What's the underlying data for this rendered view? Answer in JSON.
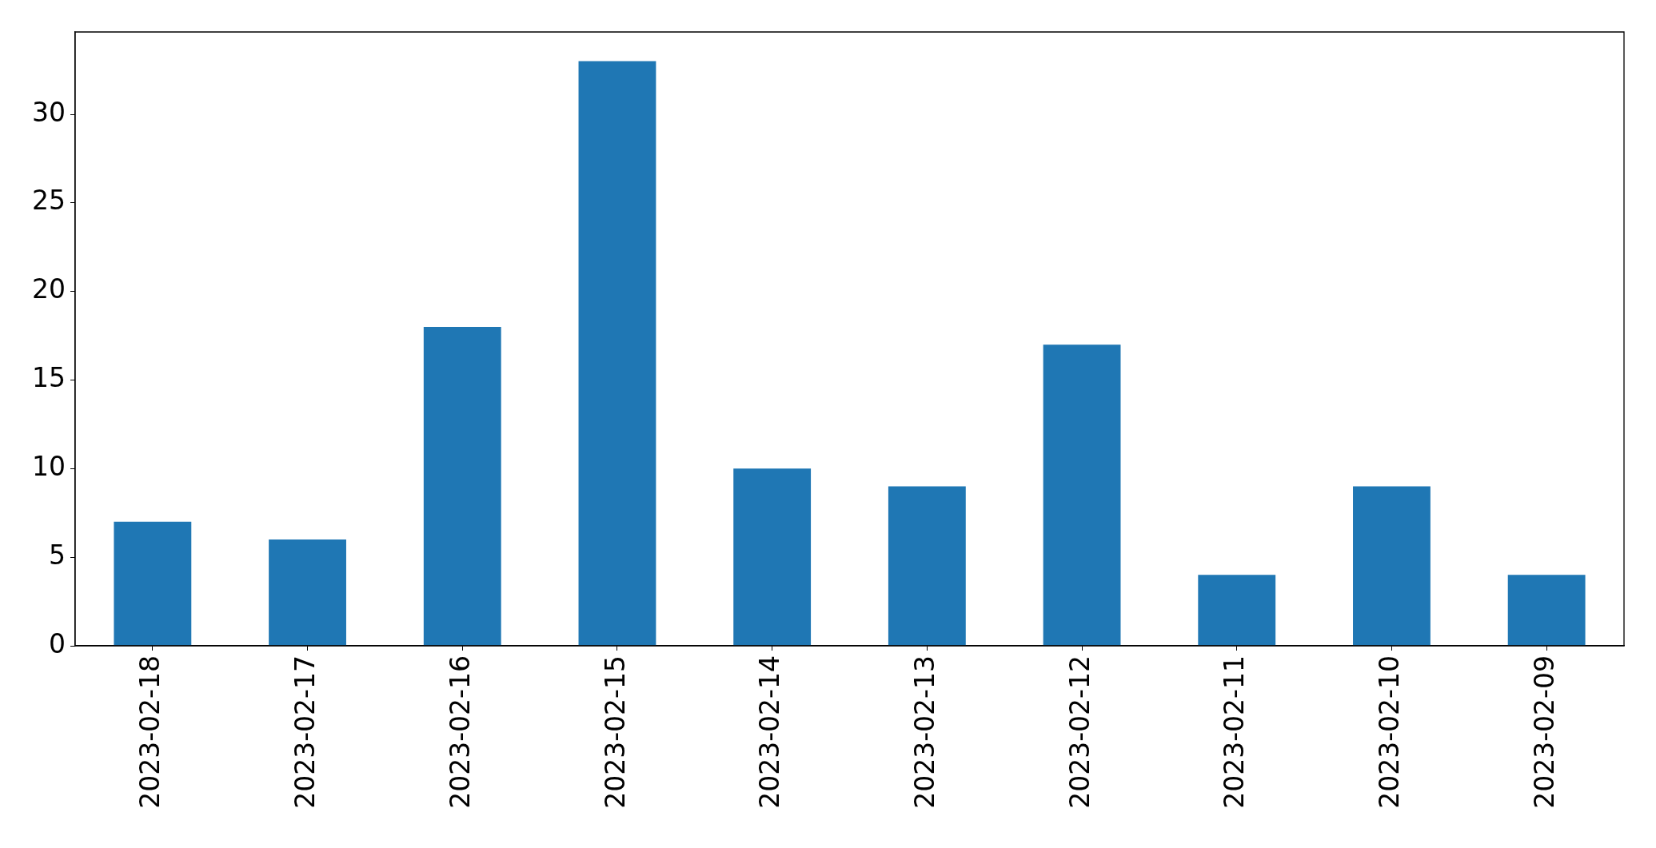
{
  "chart_data": {
    "type": "bar",
    "categories": [
      "2023-02-18",
      "2023-02-17",
      "2023-02-16",
      "2023-02-15",
      "2023-02-14",
      "2023-02-13",
      "2023-02-12",
      "2023-02-11",
      "2023-02-10",
      "2023-02-09"
    ],
    "values": [
      7,
      6,
      18,
      33,
      10,
      9,
      17,
      4,
      9,
      4
    ],
    "color": "#1f77b4",
    "ylim": [
      0,
      34.65
    ],
    "yticks": [
      0,
      5,
      10,
      15,
      20,
      25,
      30
    ]
  }
}
